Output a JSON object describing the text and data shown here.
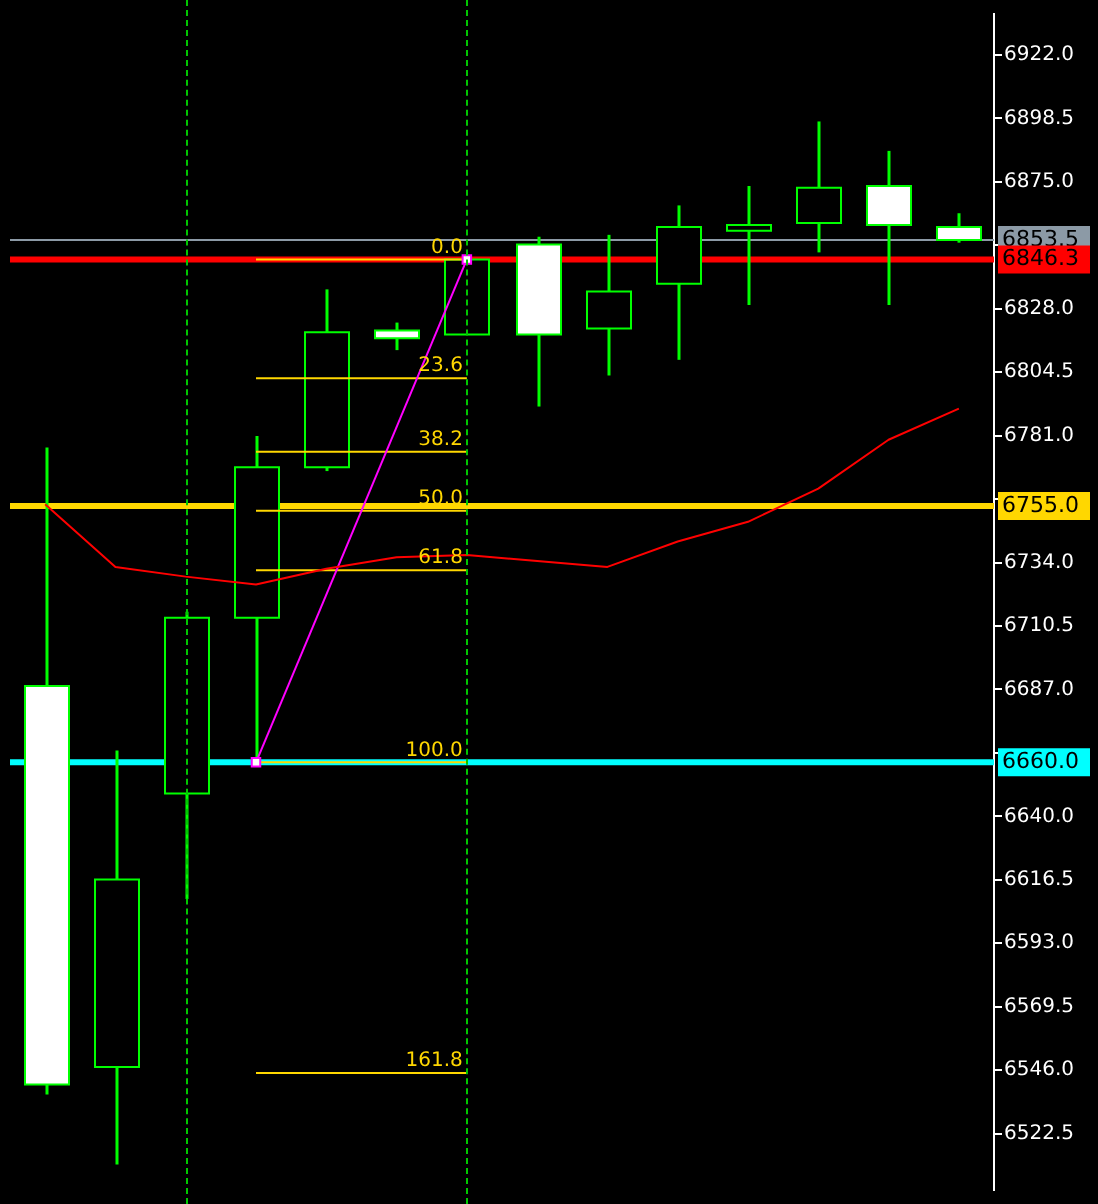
{
  "chart_data": {
    "type": "candlestick",
    "categories": [
      null,
      null,
      null,
      null,
      null,
      null,
      null,
      null,
      null,
      null,
      null,
      null,
      null,
      null
    ],
    "ohlc": [
      [
        6688.3,
        6776.6,
        6537,
        6540.7
      ],
      [
        6547.2,
        6664.4,
        6511,
        6616.6
      ],
      [
        6648.5,
        6715.8,
        6609.4,
        6713.6
      ],
      [
        6713.6,
        6780.9,
        6660,
        6769.3
      ],
      [
        6769.3,
        6835.2,
        6767.9,
        6819.3
      ],
      [
        6820,
        6822.9,
        6812.7,
        6817.1
      ],
      [
        6818.5,
        6846.3,
        6818.5,
        6846.3
      ],
      [
        6851.8,
        6854.7,
        6791.8,
        6818.5
      ],
      [
        6820.7,
        6855.4,
        6803.3,
        6834.4
      ],
      [
        6837.3,
        6866.3,
        6809.1,
        6858.3
      ],
      [
        6856.9,
        6873.5,
        6829.4,
        6859
      ],
      [
        6859.8,
        6897.4,
        6848.9,
        6872.8
      ],
      [
        6873.5,
        6886.5,
        6829.4,
        6859
      ],
      [
        6858.3,
        6863.4,
        6852.5,
        6853.5
      ]
    ],
    "series": [
      {
        "type": "line",
        "color": "#ff0000",
        "marker": "none",
        "values": [
          6755.6,
          6732.4,
          6728.8,
          6725.9,
          6731.7,
          6736,
          6736.8,
          6734.6,
          6732.4,
          6741.8,
          6749.1,
          6761.4,
          6779.5,
          6791
        ]
      },
      {
        "type": "line",
        "color": "#ff00ff",
        "marker": "square",
        "values": [
          null,
          null,
          null,
          6660,
          null,
          null,
          6846.3,
          null,
          null,
          null,
          null,
          null,
          null,
          null
        ]
      },
      {
        "type": "line",
        "name": "0.0",
        "color": "#ffd700",
        "marker": "none",
        "values": [
          null,
          null,
          null,
          6846.3,
          6846.3,
          6846.3,
          6846.3,
          null,
          null,
          null,
          null,
          null,
          null,
          null
        ]
      },
      {
        "type": "line",
        "name": "23.6",
        "color": "#ffd700",
        "marker": "none",
        "values": [
          null,
          null,
          null,
          6802.3,
          6802.3,
          6802.3,
          6802.3,
          null,
          null,
          null,
          null,
          null,
          null,
          null
        ]
      },
      {
        "type": "line",
        "name": "38.2",
        "color": "#ffd700",
        "marker": "none",
        "values": [
          null,
          null,
          null,
          6775.1,
          6775.1,
          6775.1,
          6775.1,
          null,
          null,
          null,
          null,
          null,
          null,
          null
        ]
      },
      {
        "type": "line",
        "name": "50.0",
        "color": "#ffd700",
        "marker": "none",
        "values": [
          null,
          null,
          null,
          6753.2,
          6753.2,
          6753.2,
          6753.2,
          null,
          null,
          null,
          null,
          null,
          null,
          null
        ]
      },
      {
        "type": "line",
        "name": "61.8",
        "color": "#ffd700",
        "marker": "none",
        "values": [
          null,
          null,
          null,
          6731.2,
          6731.2,
          6731.2,
          6731.2,
          null,
          null,
          null,
          null,
          null,
          null,
          null
        ]
      },
      {
        "type": "line",
        "name": "100.0",
        "color": "#ffd700",
        "marker": "none",
        "values": [
          null,
          null,
          null,
          6660,
          6660,
          6660,
          6660,
          null,
          null,
          null,
          null,
          null,
          null,
          null
        ]
      },
      {
        "type": "line",
        "name": "161.8",
        "color": "#ffd700",
        "marker": "none",
        "values": [
          null,
          null,
          null,
          6544.9,
          6544.9,
          6544.9,
          6544.9,
          null,
          null,
          null,
          null,
          null,
          null,
          null
        ]
      }
    ],
    "ref_lines": [
      {
        "axis": "y",
        "value": 6853.5,
        "label": "6853.5",
        "color": "#8c9aa6"
      },
      {
        "axis": "y",
        "value": 6846.3,
        "label": "6846.3",
        "color": "#ff0000"
      },
      {
        "axis": "y",
        "value": 6755.0,
        "label": "6755.0",
        "color": "#ffd700"
      },
      {
        "axis": "y",
        "value": 6660.0,
        "label": "6660.0",
        "color": "#00ffff"
      }
    ],
    "ylim": [
      6501.6,
      6937.2
    ],
    "yticks": [
      {
        "value": 6922,
        "label": "6922.0"
      },
      6898.5,
      {
        "value": 6875,
        "label": "6875.0"
      },
      {
        "value": 6851.5,
        "label": null
      },
      {
        "value": 6828,
        "label": "6828.0"
      },
      6804.5,
      {
        "value": 6781,
        "label": "6781.0"
      },
      {
        "value": 6757.5,
        "label": null
      },
      {
        "value": 6734,
        "label": "6734.0"
      },
      6710.5,
      {
        "value": 6687,
        "label": "6687.0"
      },
      {
        "value": 6663.5,
        "label": null
      },
      {
        "value": 6640,
        "label": "6640.0"
      },
      6616.5,
      {
        "value": 6593,
        "label": "6593.0"
      },
      6569.5,
      {
        "value": 6546,
        "label": "6546.0"
      },
      6522.5
    ],
    "tick_labels": "y",
    "grid": false,
    "legend": false
  }
}
